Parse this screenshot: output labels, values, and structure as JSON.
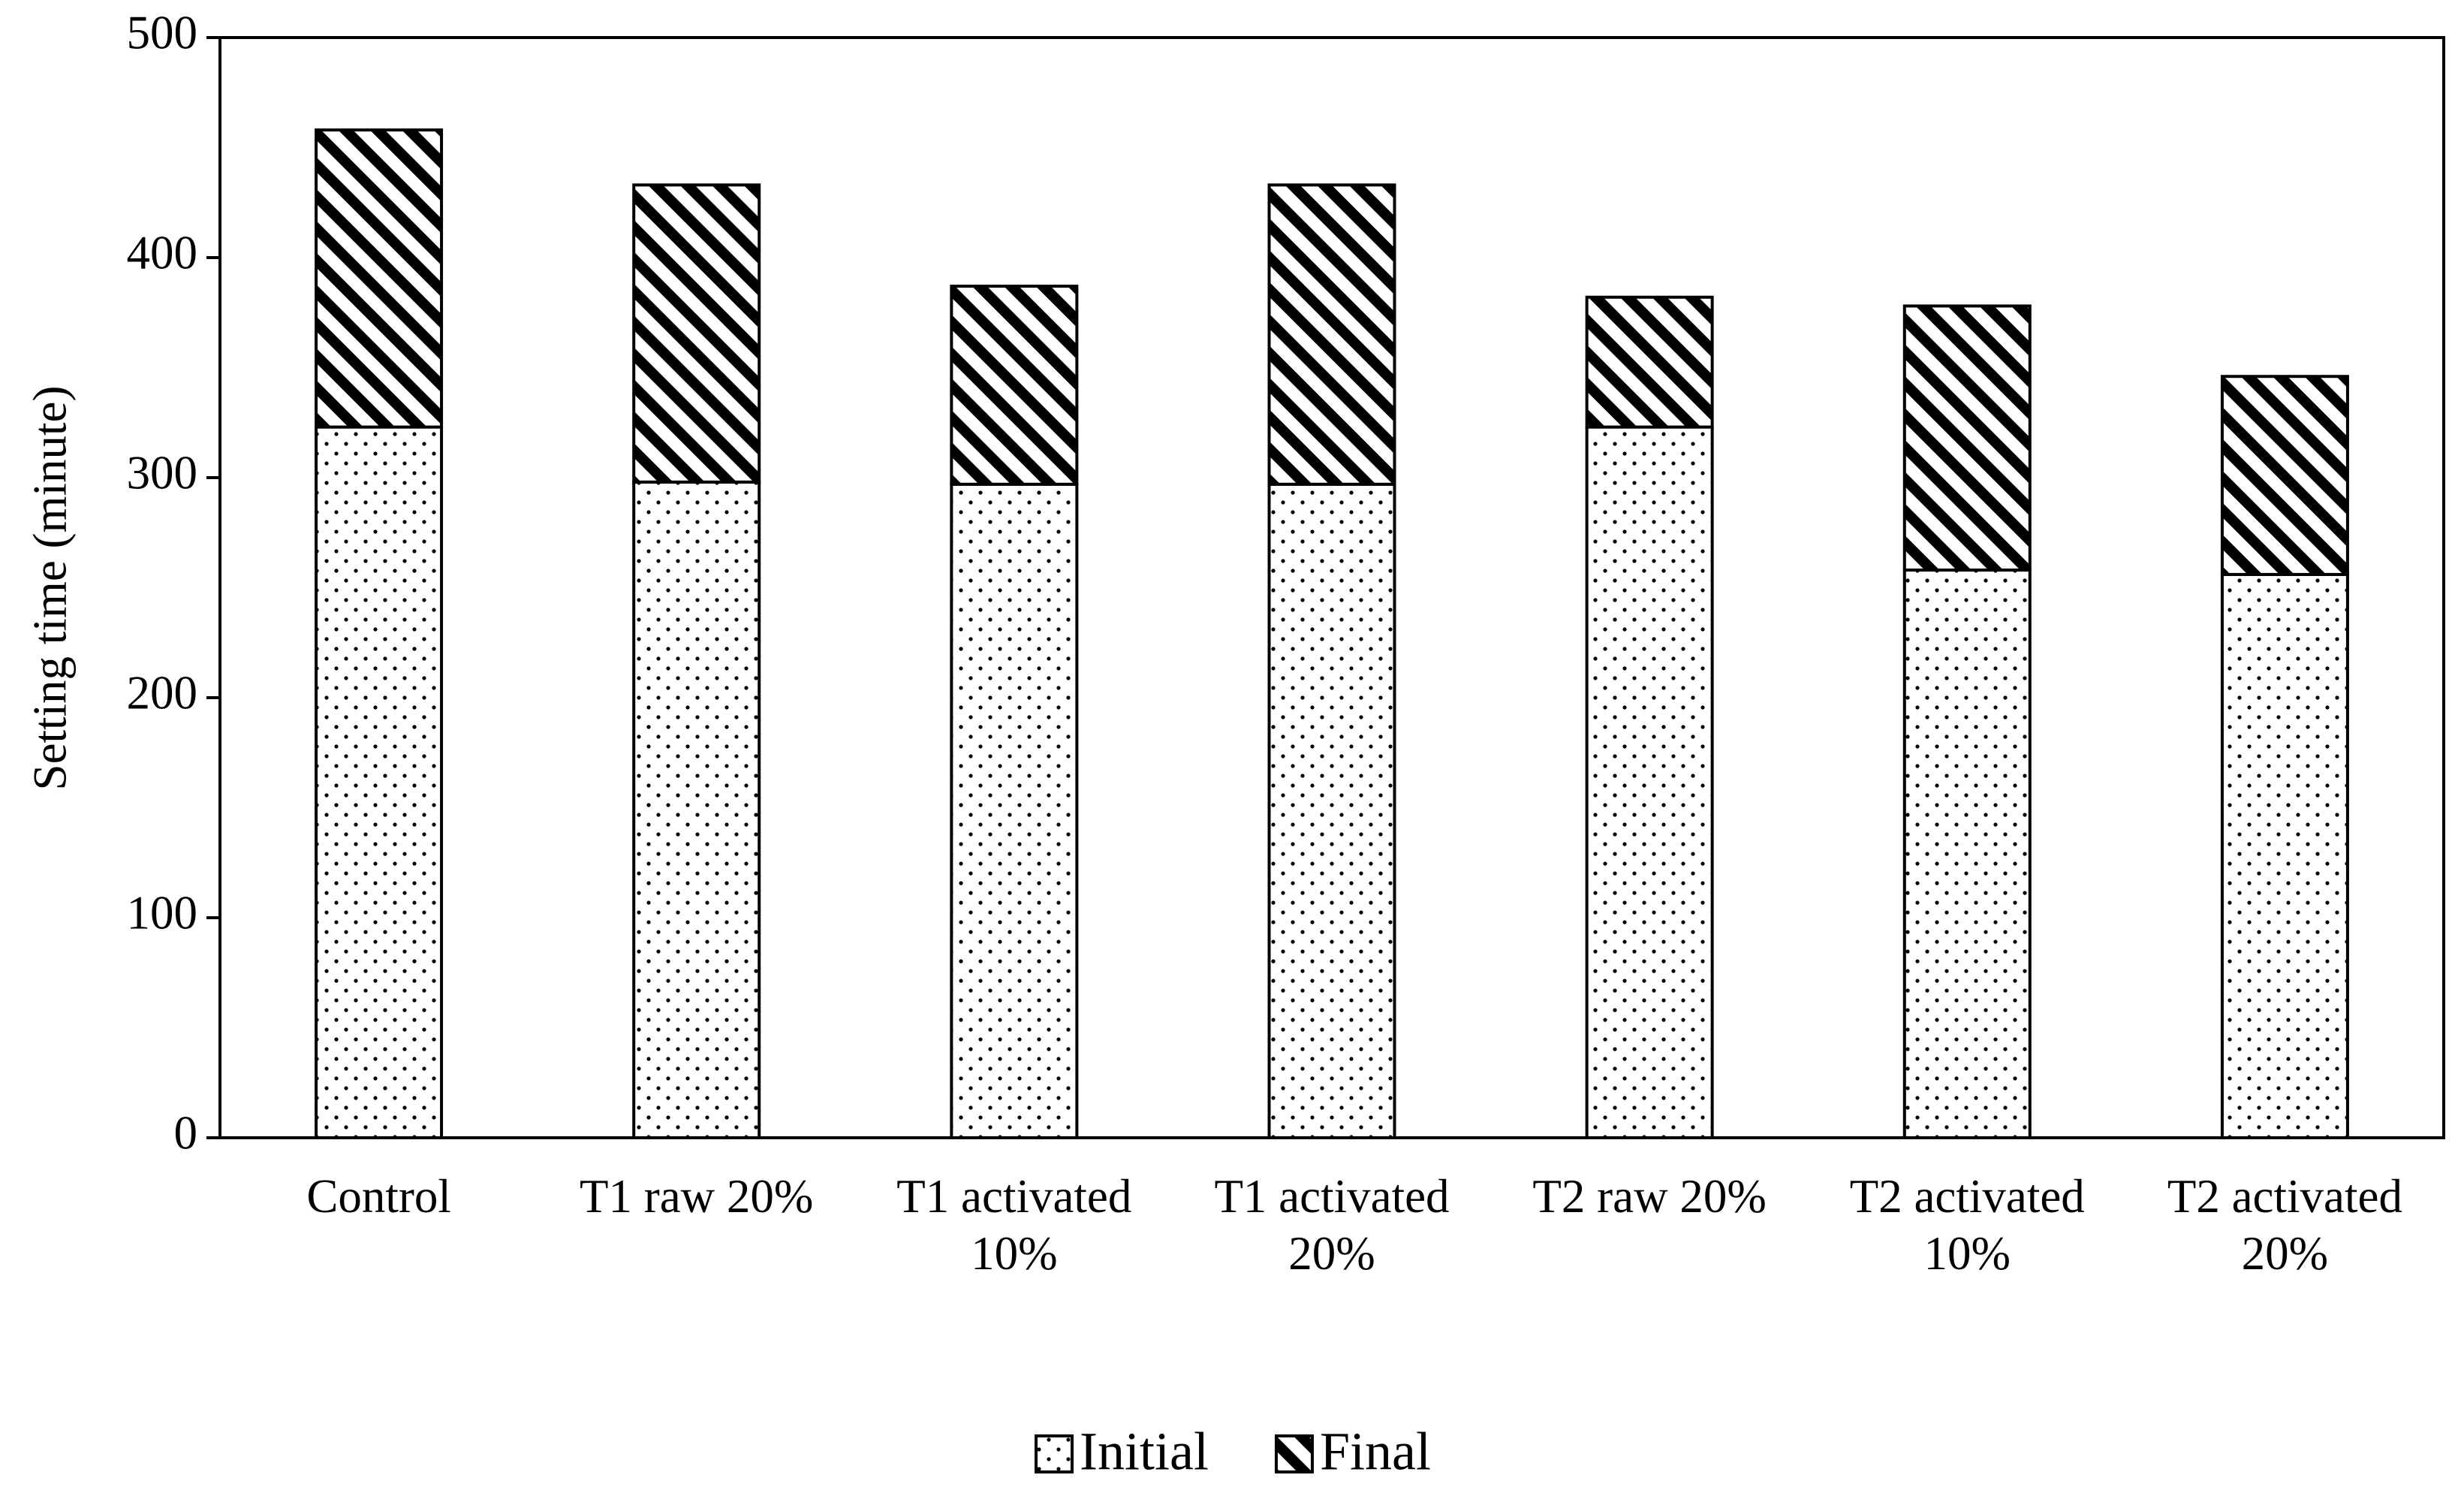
{
  "chart_data": {
    "type": "stacked_bar",
    "y_label": "Setting time (minute)",
    "categories": [
      "Control",
      "T1 raw 20%",
      "T1 activated 10%",
      "T1 activated 20%",
      "T2 raw 20%",
      "T2 activated 10%",
      "T2 activated 20%"
    ],
    "series": [
      {
        "name": "Initial",
        "color": "#000000",
        "pattern": "dots",
        "values": [
          323,
          298,
          297,
          297,
          323,
          258,
          256
        ]
      },
      {
        "name": "Final",
        "color": "#000000",
        "pattern": "stripes",
        "values": [
          135,
          135,
          90,
          136,
          59,
          120,
          90
        ]
      }
    ],
    "ylim": [
      0,
      500
    ],
    "yticks": [
      0,
      100,
      200,
      300,
      400,
      500
    ],
    "grid": false,
    "legend": "bottom"
  }
}
